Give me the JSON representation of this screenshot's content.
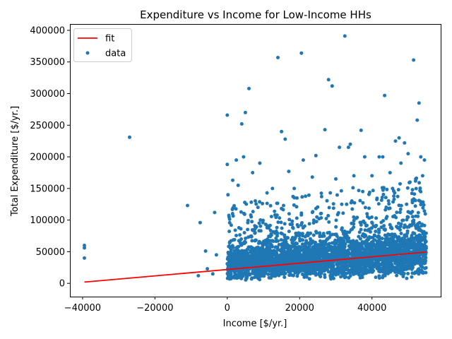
{
  "chart_data": {
    "type": "scatter",
    "title": "Expenditure vs Income for Low-Income HHs",
    "xlabel": "Income [$/yr.]",
    "ylabel": "Total Expenditure [$/yr.]",
    "xlim": [
      -43500,
      59000
    ],
    "ylim": [
      -21000,
      410000
    ],
    "xticks": [
      -40000,
      -20000,
      0,
      20000,
      40000
    ],
    "yticks": [
      0,
      50000,
      100000,
      150000,
      200000,
      250000,
      300000,
      350000,
      400000
    ],
    "grid": false,
    "legend_position": "top-left",
    "legend": [
      {
        "label": "fit",
        "kind": "line",
        "color": "#ff0000"
      },
      {
        "label": "data",
        "kind": "marker",
        "color": "#1f77b4"
      }
    ],
    "series": [
      {
        "name": "data",
        "color": "#1f77b4",
        "points": [
          [
            -39500,
            60000
          ],
          [
            -39500,
            56000
          ],
          [
            -39500,
            40000
          ],
          [
            -27000,
            231000
          ],
          [
            -11000,
            123000
          ],
          [
            -7500,
            96000
          ],
          [
            -8000,
            12000
          ],
          [
            -5500,
            23000
          ],
          [
            -6000,
            51000
          ],
          [
            -4000,
            15000
          ],
          [
            -3000,
            45000
          ],
          [
            -3500,
            112000
          ],
          [
            0,
            266000
          ],
          [
            0,
            188000
          ],
          [
            200,
            140000
          ],
          [
            500,
            105000
          ],
          [
            1500,
            163000
          ],
          [
            2500,
            195000
          ],
          [
            3000,
            155000
          ],
          [
            4000,
            252000
          ],
          [
            4500,
            200000
          ],
          [
            5000,
            270000
          ],
          [
            6000,
            308000
          ],
          [
            7000,
            175000
          ],
          [
            9000,
            190000
          ],
          [
            11000,
            143000
          ],
          [
            12500,
            150000
          ],
          [
            14000,
            357000
          ],
          [
            15000,
            240000
          ],
          [
            16000,
            228000
          ],
          [
            17000,
            177000
          ],
          [
            18500,
            150000
          ],
          [
            20500,
            364000
          ],
          [
            21000,
            195000
          ],
          [
            23500,
            168000
          ],
          [
            24500,
            202000
          ],
          [
            27000,
            243000
          ],
          [
            28000,
            322000
          ],
          [
            29000,
            312000
          ],
          [
            30000,
            165000
          ],
          [
            31000,
            215000
          ],
          [
            32500,
            391000
          ],
          [
            33500,
            215000
          ],
          [
            34000,
            220000
          ],
          [
            35000,
            170000
          ],
          [
            37000,
            242000
          ],
          [
            38000,
            200000
          ],
          [
            40000,
            170000
          ],
          [
            42000,
            200000
          ],
          [
            43000,
            200000
          ],
          [
            43500,
            297000
          ],
          [
            45000,
            175000
          ],
          [
            46500,
            225000
          ],
          [
            47500,
            230000
          ],
          [
            48000,
            190000
          ],
          [
            49000,
            222000
          ],
          [
            50000,
            205000
          ],
          [
            50500,
            160000
          ],
          [
            51500,
            353000
          ],
          [
            52500,
            258000
          ],
          [
            53000,
            285000
          ],
          [
            53500,
            200000
          ],
          [
            54000,
            170000
          ],
          [
            54500,
            195000
          ]
        ]
      }
    ],
    "dense_band": {
      "series": "data",
      "x_range": [
        0,
        55000
      ],
      "y_low_at_x0": 5000,
      "y_low_at_x1": 8000,
      "y_high_at_x0": 58000,
      "y_high_at_x1": 92000,
      "sparse_high_at_x0": 125000,
      "sparse_high_at_x1": 170000
    },
    "fit_line": {
      "name": "fit",
      "color": "#ff0000",
      "points": [
        [
          -39500,
          2000
        ],
        [
          55000,
          49500
        ]
      ]
    }
  }
}
